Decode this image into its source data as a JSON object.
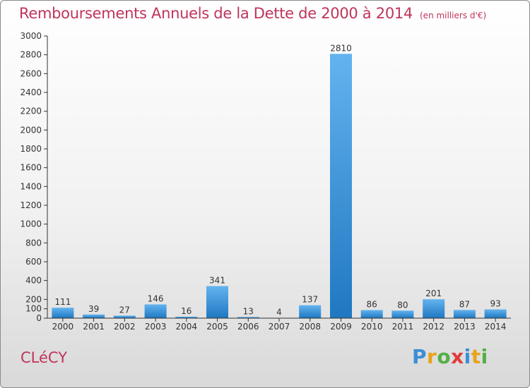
{
  "header": {
    "title": "Remboursements Annuels de la Dette de 2000 à 2014",
    "unit": "(en milliers d'€)"
  },
  "footer": {
    "commune": "CLéCY",
    "logo": "Proxiti"
  },
  "colors": {
    "title": "#c0345a",
    "bar_light": "#63b3ef",
    "bar_dark": "#1f78c1"
  },
  "chart_data": {
    "type": "bar",
    "title": "Remboursements Annuels de la Dette de 2000 à 2014",
    "xlabel": "",
    "ylabel": "",
    "ylim": [
      0,
      3000
    ],
    "yticks": [
      0,
      200,
      400,
      600,
      800,
      1000,
      1200,
      1400,
      1600,
      1800,
      2000,
      2200,
      2400,
      2600,
      2800,
      3000
    ],
    "yticks_minor": [
      100
    ],
    "grid": false,
    "legend": "none",
    "categories": [
      "2000",
      "2001",
      "2002",
      "2003",
      "2004",
      "2005",
      "2006",
      "2007",
      "2008",
      "2009",
      "2010",
      "2011",
      "2012",
      "2013",
      "2014"
    ],
    "values": [
      111,
      39,
      27,
      146,
      16,
      341,
      13,
      4,
      137,
      2810,
      86,
      80,
      201,
      87,
      93
    ]
  }
}
